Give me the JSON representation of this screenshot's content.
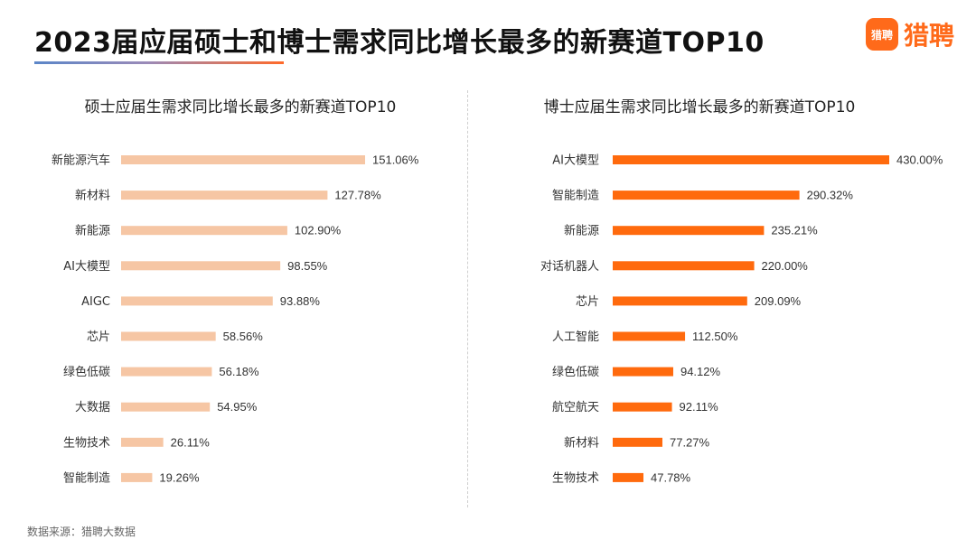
{
  "header": {
    "title": "2023届应届硕士和博士需求同比增长最多的新赛道TOP10"
  },
  "brand": {
    "mark": "猎聘",
    "name": "猎聘",
    "color": "#ff6a1a"
  },
  "footnote": "数据来源：猎聘大数据",
  "chart_data": [
    {
      "type": "bar",
      "orientation": "horizontal",
      "title": "硕士应届生需求同比增长最多的新赛道TOP10",
      "categories": [
        "新能源汽车",
        "新材料",
        "新能源",
        "AI大模型",
        "AIGC",
        "芯片",
        "绿色低碳",
        "大数据",
        "生物技术",
        "智能制造"
      ],
      "values": [
        151.06,
        127.78,
        102.9,
        98.55,
        93.88,
        58.56,
        56.18,
        54.95,
        26.11,
        19.26
      ],
      "labels": [
        "151.06%",
        "127.78%",
        "102.90%",
        "98.55%",
        "93.88%",
        "58.56%",
        "56.18%",
        "54.95%",
        "26.11%",
        "19.26%"
      ],
      "unit": "%",
      "color": "#f6c6a4",
      "xlim": [
        0,
        151.06
      ]
    },
    {
      "type": "bar",
      "orientation": "horizontal",
      "title": "博士应届生需求同比增长最多的新赛道TOP10",
      "categories": [
        "AI大模型",
        "智能制造",
        "新能源",
        "对话机器人",
        "芯片",
        "人工智能",
        "绿色低碳",
        "航空航天",
        "新材料",
        "生物技术"
      ],
      "values": [
        430.0,
        290.32,
        235.21,
        220.0,
        209.09,
        112.5,
        94.12,
        92.11,
        77.27,
        47.78
      ],
      "labels": [
        "430.00%",
        "290.32%",
        "235.21%",
        "220.00%",
        "209.09%",
        "112.50%",
        "94.12%",
        "92.11%",
        "77.27%",
        "47.78%"
      ],
      "unit": "%",
      "color": "#ff6a0d",
      "xlim": [
        0,
        430.0
      ]
    }
  ]
}
